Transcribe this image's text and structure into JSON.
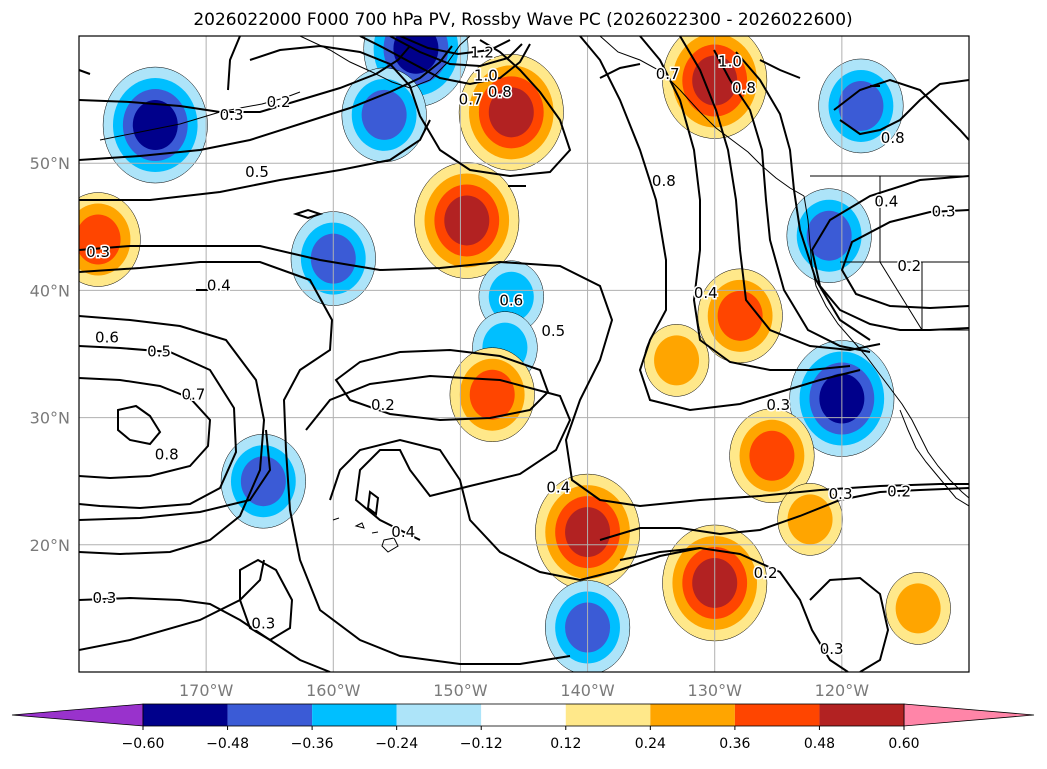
{
  "chart_data": {
    "type": "map",
    "title": "2026022000 F000 700 hPa PV, Rossby Wave PC (2026022300 - 2026022600)",
    "lon_range": [
      -180,
      -110
    ],
    "lat_range": [
      10,
      60
    ],
    "lon_ticks": [
      {
        "value": -170,
        "label": "170°W"
      },
      {
        "value": -160,
        "label": "160°W"
      },
      {
        "value": -150,
        "label": "150°W"
      },
      {
        "value": -140,
        "label": "140°W"
      },
      {
        "value": -130,
        "label": "130°W"
      },
      {
        "value": -120,
        "label": "120°W"
      }
    ],
    "lat_ticks": [
      {
        "value": 20,
        "label": "20°N"
      },
      {
        "value": 30,
        "label": "30°N"
      },
      {
        "value": 40,
        "label": "40°N"
      },
      {
        "value": 50,
        "label": "50°N"
      }
    ],
    "colorbar": {
      "bounds": [
        -0.72,
        -0.6,
        -0.48,
        -0.36,
        -0.24,
        -0.12,
        0.12,
        0.24,
        0.36,
        0.48,
        0.6,
        0.72
      ],
      "colors": [
        "#9932cc",
        "#00008b",
        "#3b5bd6",
        "#00bfff",
        "#ade4f9",
        "#ffffff",
        "#ffe88a",
        "#ffa500",
        "#ff4500",
        "#b22222",
        "#ff85a8"
      ],
      "extend": "both",
      "tick_labels": [
        "−0.60",
        "−0.48",
        "−0.36",
        "−0.24",
        "−0.12",
        "0.12",
        "0.24",
        "0.36",
        "0.48",
        "0.60"
      ]
    },
    "pv_contour_labels": [
      {
        "text": "1.2",
        "lon": -148.3,
        "lat": 58.7
      },
      {
        "text": "1.0",
        "lon": -148.0,
        "lat": 56.9
      },
      {
        "text": "0.8",
        "lon": -146.9,
        "lat": 55.6
      },
      {
        "text": "0.7",
        "lon": -149.2,
        "lat": 55.0
      },
      {
        "text": "0.3",
        "lon": -168.0,
        "lat": 53.8
      },
      {
        "text": "0.2",
        "lon": -164.3,
        "lat": 54.8
      },
      {
        "text": "0.5",
        "lon": -166.0,
        "lat": 49.3
      },
      {
        "text": "0.7",
        "lon": -133.7,
        "lat": 57.0
      },
      {
        "text": "1.0",
        "lon": -128.8,
        "lat": 58.0
      },
      {
        "text": "0.8",
        "lon": -127.7,
        "lat": 55.9
      },
      {
        "text": "0.8",
        "lon": -134.0,
        "lat": 48.6
      },
      {
        "text": "0.8",
        "lon": -116.0,
        "lat": 52.0
      },
      {
        "text": "0.4",
        "lon": -116.5,
        "lat": 47.0
      },
      {
        "text": "0.3",
        "lon": -112.0,
        "lat": 46.2
      },
      {
        "text": "0.2",
        "lon": -114.7,
        "lat": 41.9
      },
      {
        "text": "0.3",
        "lon": -178.5,
        "lat": 43.0
      },
      {
        "text": "0.4",
        "lon": -169.0,
        "lat": 40.4
      },
      {
        "text": "0.6",
        "lon": -146.0,
        "lat": 39.2
      },
      {
        "text": "0.5",
        "lon": -142.7,
        "lat": 36.8
      },
      {
        "text": "0.4",
        "lon": -130.7,
        "lat": 39.8
      },
      {
        "text": "0.6",
        "lon": -177.8,
        "lat": 36.3
      },
      {
        "text": "0.5",
        "lon": -173.7,
        "lat": 35.2
      },
      {
        "text": "0.7",
        "lon": -171.0,
        "lat": 31.8
      },
      {
        "text": "0.8",
        "lon": -173.1,
        "lat": 27.1
      },
      {
        "text": "0.2",
        "lon": -156.1,
        "lat": 31.0
      },
      {
        "text": "0.3",
        "lon": -125.0,
        "lat": 31.0
      },
      {
        "text": "0.4",
        "lon": -142.3,
        "lat": 24.5
      },
      {
        "text": "0.4",
        "lon": -154.5,
        "lat": 21.0
      },
      {
        "text": "0.3",
        "lon": -120.1,
        "lat": 24.0
      },
      {
        "text": "0.2",
        "lon": -115.5,
        "lat": 24.2
      },
      {
        "text": "0.2",
        "lon": -126.0,
        "lat": 17.8
      },
      {
        "text": "0.3",
        "lon": -178.0,
        "lat": 15.8
      },
      {
        "text": "0.3",
        "lon": -165.5,
        "lat": 13.8
      },
      {
        "text": "0.3",
        "lon": -120.8,
        "lat": 11.8
      }
    ],
    "rossby_pc_anomalies": [
      {
        "sign": "negative",
        "peak": -0.48,
        "lon": -153.5,
        "lat": 59.0
      },
      {
        "sign": "negative",
        "peak": -0.36,
        "lon": -156.0,
        "lat": 53.8
      },
      {
        "sign": "negative",
        "peak": -0.48,
        "lon": -174.0,
        "lat": 53.0
      },
      {
        "sign": "positive",
        "peak": 0.48,
        "lon": -146.0,
        "lat": 54.0
      },
      {
        "sign": "positive",
        "peak": 0.48,
        "lon": -130.0,
        "lat": 56.5
      },
      {
        "sign": "positive",
        "peak": 0.48,
        "lon": -149.5,
        "lat": 45.5
      },
      {
        "sign": "positive",
        "peak": 0.36,
        "lon": -178.5,
        "lat": 44.0
      },
      {
        "sign": "negative",
        "peak": -0.36,
        "lon": -160.0,
        "lat": 42.5
      },
      {
        "sign": "negative",
        "peak": -0.24,
        "lon": -146.0,
        "lat": 39.5
      },
      {
        "sign": "negative",
        "peak": -0.24,
        "lon": -146.5,
        "lat": 35.5
      },
      {
        "sign": "negative",
        "peak": -0.36,
        "lon": -121.0,
        "lat": 44.3
      },
      {
        "sign": "negative",
        "peak": -0.36,
        "lon": -118.5,
        "lat": 54.5
      },
      {
        "sign": "positive",
        "peak": 0.36,
        "lon": -128.0,
        "lat": 38.0
      },
      {
        "sign": "positive",
        "peak": 0.24,
        "lon": -133.0,
        "lat": 34.5
      },
      {
        "sign": "positive",
        "peak": 0.36,
        "lon": -147.5,
        "lat": 31.8
      },
      {
        "sign": "negative",
        "peak": -0.48,
        "lon": -120.0,
        "lat": 31.5
      },
      {
        "sign": "positive",
        "peak": 0.36,
        "lon": -125.5,
        "lat": 27.0
      },
      {
        "sign": "positive",
        "peak": 0.48,
        "lon": -140.0,
        "lat": 21.0
      },
      {
        "sign": "positive",
        "peak": 0.48,
        "lon": -130.0,
        "lat": 17.0
      },
      {
        "sign": "negative",
        "peak": -0.36,
        "lon": -165.5,
        "lat": 25.0
      },
      {
        "sign": "negative",
        "peak": -0.36,
        "lon": -140.0,
        "lat": 13.5
      },
      {
        "sign": "positive",
        "peak": 0.24,
        "lon": -122.5,
        "lat": 22.0
      },
      {
        "sign": "positive",
        "peak": 0.24,
        "lon": -114.0,
        "lat": 15.0
      }
    ]
  }
}
